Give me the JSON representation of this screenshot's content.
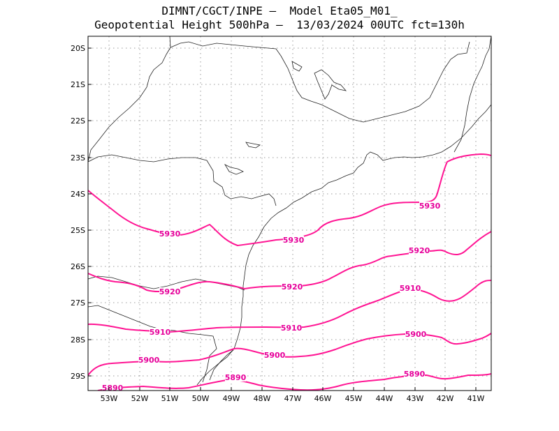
{
  "title": {
    "line1": "DIMNT/CGCT/INPE —  Model Eta05_M01_",
    "line2": "Geopotential Height 500hPa —  13/03/2024 00UTC fct=130h"
  },
  "colors": {
    "contour": "#ff1493",
    "label": "#e6009a",
    "coast": "#000000",
    "grid": "#9a9a9a"
  },
  "axes": {
    "lat_ticks": [
      "20S",
      "21S",
      "22S",
      "23S",
      "24S",
      "25S",
      "26S",
      "27S",
      "28S",
      "29S"
    ],
    "lon_ticks": [
      "53W",
      "52W",
      "51W",
      "50W",
      "49W",
      "48W",
      "47W",
      "46W",
      "45W",
      "44W",
      "43W",
      "42W",
      "41W"
    ],
    "lon_range": [
      -53.7,
      -40.5
    ],
    "lat_range": [
      -29.4,
      -19.8
    ]
  },
  "contours": [
    {
      "value": 5930,
      "labels": [
        "5930",
        "5930",
        "5930"
      ]
    },
    {
      "value": 5920,
      "labels": [
        "5920",
        "5920",
        "5920"
      ]
    },
    {
      "value": 5910,
      "labels": [
        "5910",
        "5910",
        "5910"
      ]
    },
    {
      "value": 5900,
      "labels": [
        "5900",
        "5900",
        "5900"
      ]
    },
    {
      "value": 5890,
      "labels": [
        "5890",
        "5890",
        "5890"
      ]
    }
  ]
}
